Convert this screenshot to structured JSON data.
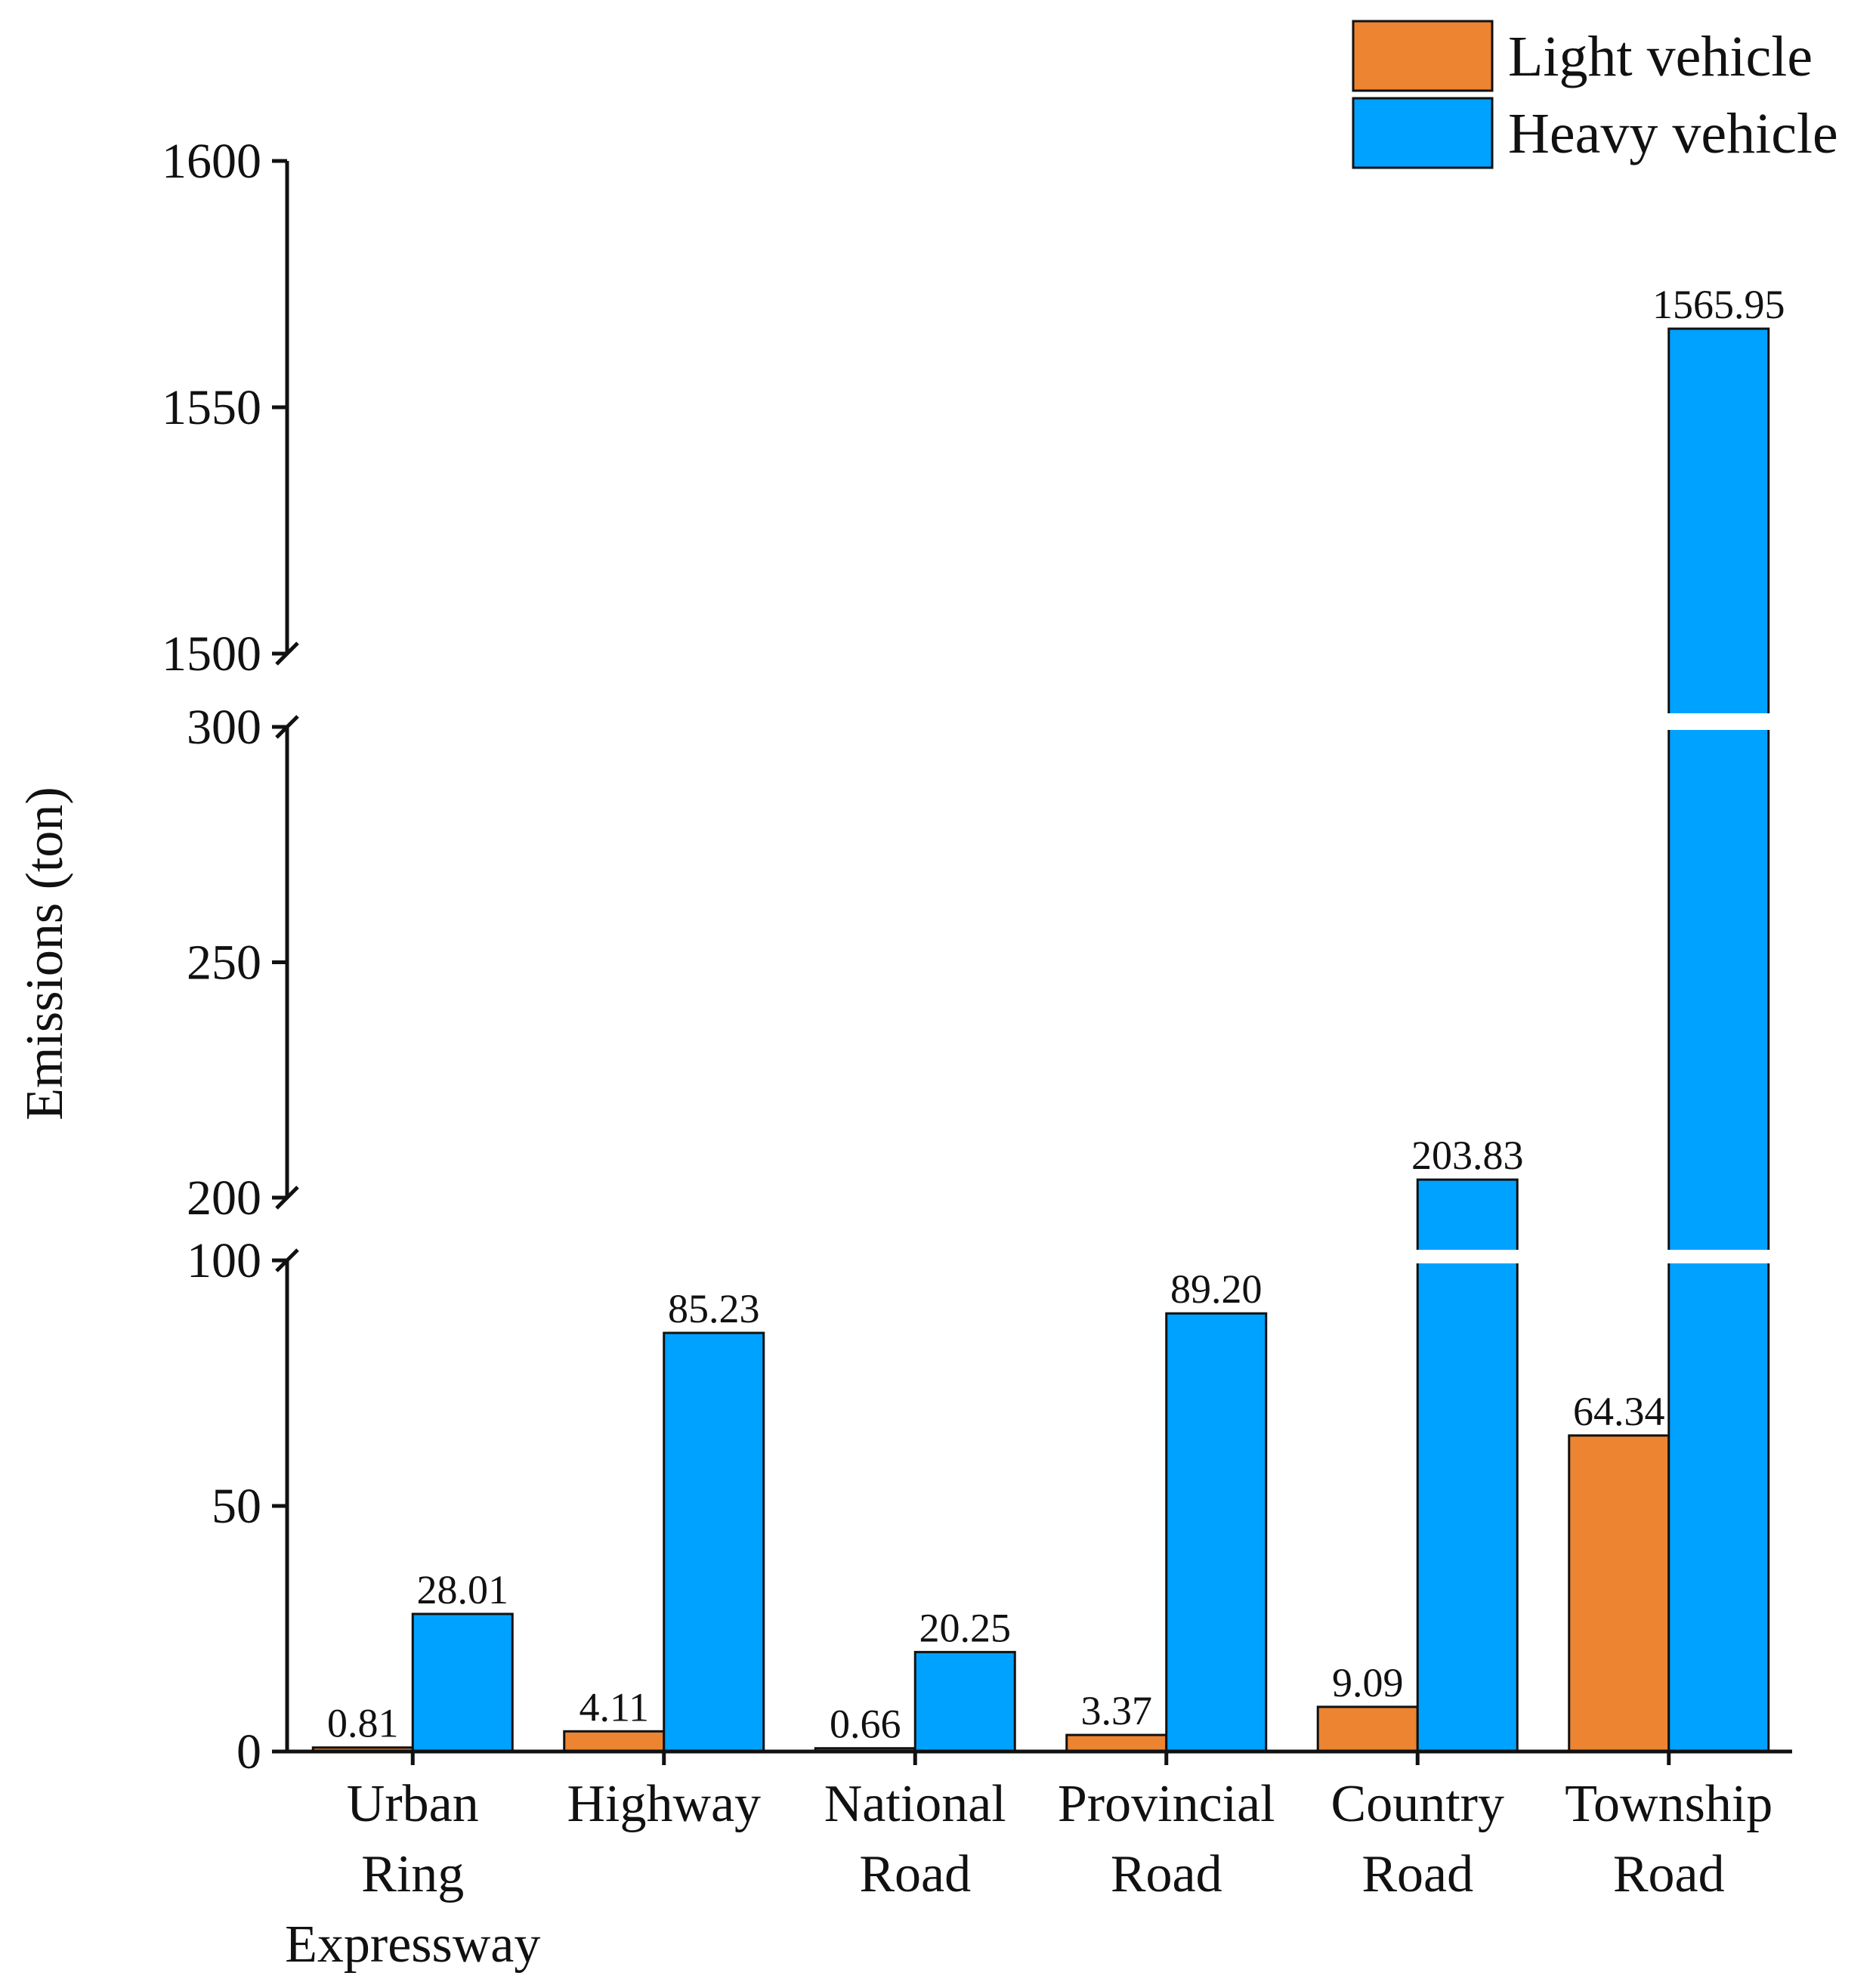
{
  "chart_data": {
    "type": "bar",
    "title": "",
    "xlabel": "",
    "ylabel": "Emissions (ton)",
    "categories": [
      [
        "Urban",
        "Ring",
        "Expressway"
      ],
      [
        "Highway"
      ],
      [
        "National",
        "Road"
      ],
      [
        "Provincial",
        "Road"
      ],
      [
        "Country",
        "Road"
      ],
      [
        "Township",
        "Road"
      ]
    ],
    "series": [
      {
        "name": "Light vehicle",
        "color": "#ED8431",
        "values": [
          0.81,
          4.11,
          0.66,
          3.37,
          9.09,
          64.34
        ],
        "labels": [
          "0.81",
          "4.11",
          "0.66",
          "3.37",
          "9.09",
          "64.34"
        ]
      },
      {
        "name": "Heavy vehicle",
        "color": "#00A2FF",
        "values": [
          28.01,
          85.23,
          20.25,
          89.2,
          203.83,
          1565.95
        ],
        "labels": [
          "28.01",
          "85.23",
          "20.25",
          "89.20",
          "203.83",
          "1565.95"
        ]
      }
    ],
    "y_axis_segments": [
      {
        "range": [
          0,
          100
        ],
        "ticks": [
          0,
          50,
          100
        ]
      },
      {
        "range": [
          200,
          300
        ],
        "ticks": [
          200,
          250,
          300
        ]
      },
      {
        "range": [
          1500,
          1600
        ],
        "ticks": [
          1500,
          1550,
          1600
        ]
      }
    ],
    "axis_break": true,
    "grid": false,
    "legend": {
      "position": "top-right"
    }
  }
}
